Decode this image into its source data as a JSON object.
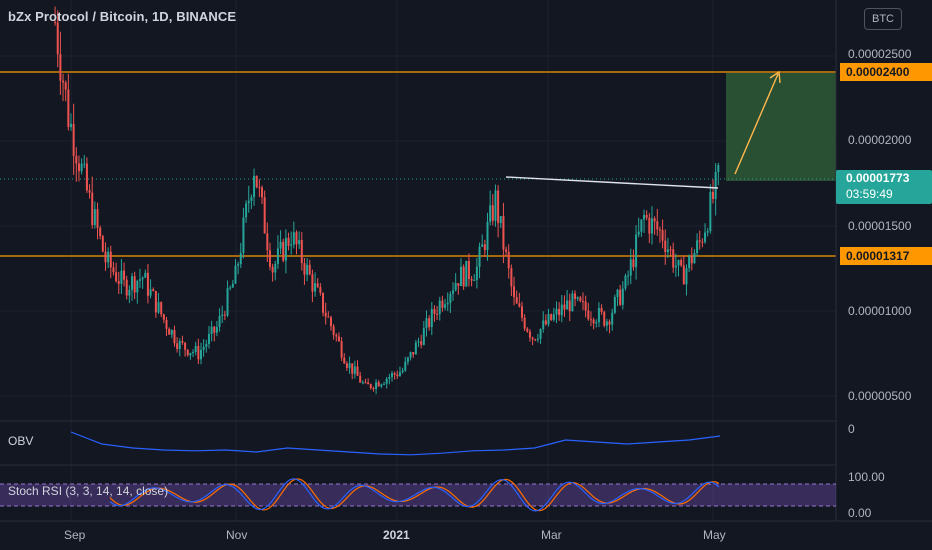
{
  "header": {
    "title": "bZx Protocol / Bitcoin, 1D, BINANCE",
    "currency_button": "BTC"
  },
  "price_labels": {
    "level_high": "0.00002400",
    "last_price": "0.00001773",
    "countdown": "03:59:49",
    "level_low": "0.00001317"
  },
  "indicators": {
    "obv_label": "OBV",
    "obv_axis": "0",
    "stoch_label": "Stoch RSI (3, 3, 14, 14, close)",
    "stoch_axis_top": "100.00",
    "stoch_axis_bottom": "0.00"
  },
  "colors": {
    "up": "#26a69a",
    "down": "#ef5350",
    "level": "#ff9800",
    "target_box": "#2f5a37",
    "last_price": "#26a69a",
    "obv": "#2962ff",
    "stoch_k": "#2962ff",
    "stoch_d": "#ff6d00",
    "stoch_band": "#7e57c2"
  },
  "chart_data": {
    "type": "candlestick",
    "title": "bZx Protocol / Bitcoin, 1D, BINANCE",
    "y_axis_ticks": [
      "0.00002500",
      "0.00002000",
      "0.00001500",
      "0.00001000",
      "0.00000500"
    ],
    "x_axis_ticks": [
      "Sep",
      "Nov",
      "2021",
      "Mar",
      "May"
    ],
    "horizontal_levels": [
      2.4e-05,
      1.317e-05
    ],
    "last_price": 1.773e-05,
    "trendline": {
      "from": [
        "2021-02-07",
        1.78e-05
      ],
      "to": [
        "2021-04-29",
        1.73e-05
      ]
    },
    "target_projection": {
      "from": 1.78e-05,
      "to": 2.4e-05
    },
    "price_path": [
      [
        "2020-08-26",
        2.7e-05
      ],
      [
        "2020-08-31",
        2.15e-05
      ],
      [
        "2020-09-07",
        1.7e-05
      ],
      [
        "2020-09-14",
        1.3e-05
      ],
      [
        "2020-09-21",
        1.15e-05
      ],
      [
        "2020-09-28",
        1.2e-05
      ],
      [
        "2020-10-06",
        9.5e-06
      ],
      [
        "2020-10-12",
        8e-06
      ],
      [
        "2020-10-19",
        7.5e-06
      ],
      [
        "2020-10-26",
        9e-06
      ],
      [
        "2020-11-02",
        1.2e-05
      ],
      [
        "2020-11-09",
        1.85e-05
      ],
      [
        "2020-11-16",
        1.25e-05
      ],
      [
        "2020-11-23",
        1.45e-05
      ],
      [
        "2020-11-30",
        1.2e-05
      ],
      [
        "2020-12-07",
        9.5e-06
      ],
      [
        "2020-12-14",
        7e-06
      ],
      [
        "2020-12-21",
        5.5e-06
      ],
      [
        "2020-12-28",
        6e-06
      ],
      [
        "2021-01-04",
        6.5e-06
      ],
      [
        "2021-01-11",
        8.5e-06
      ],
      [
        "2021-01-18",
        1.05e-05
      ],
      [
        "2021-01-25",
        1.2e-05
      ],
      [
        "2021-02-01",
        1.25e-05
      ],
      [
        "2021-02-08",
        1.65e-05
      ],
      [
        "2021-02-15",
        1.05e-05
      ],
      [
        "2021-02-22",
        8.5e-06
      ],
      [
        "2021-03-01",
        9.5e-06
      ],
      [
        "2021-03-08",
        1.05e-05
      ],
      [
        "2021-03-15",
        1e-05
      ],
      [
        "2021-03-22",
        9.5e-06
      ],
      [
        "2021-03-29",
        1.15e-05
      ],
      [
        "2021-04-05",
        1.55e-05
      ],
      [
        "2021-04-12",
        1.45e-05
      ],
      [
        "2021-04-19",
        1.2e-05
      ],
      [
        "2021-04-26",
        1.4e-05
      ],
      [
        "2021-05-03",
        1.77e-05
      ]
    ],
    "obv": [
      0.15,
      0.45,
      0.55,
      0.6,
      0.62,
      0.6,
      0.65,
      0.55,
      0.6,
      0.65,
      0.7,
      0.72,
      0.68,
      0.62,
      0.6,
      0.55,
      0.35,
      0.4,
      0.45,
      0.4,
      0.35,
      0.25
    ],
    "stoch_rsi": {
      "upper_band": 80,
      "lower_band": 20,
      "ylim": [
        0,
        100
      ]
    }
  }
}
